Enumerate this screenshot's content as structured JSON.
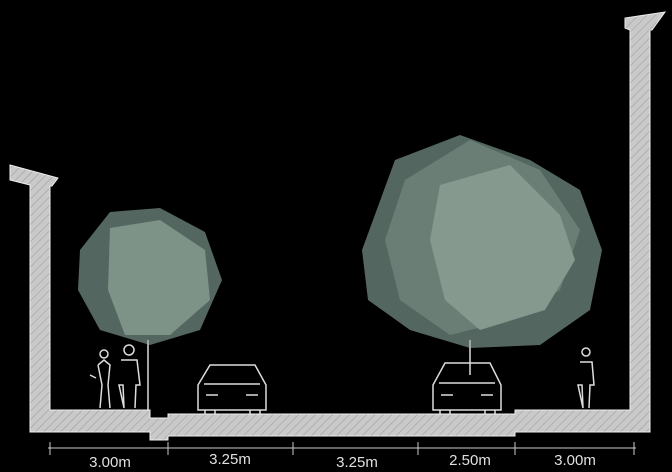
{
  "dimensions": [
    "3.00m",
    "3.25m",
    "3.25m",
    "2.50m",
    "3.00m"
  ]
}
